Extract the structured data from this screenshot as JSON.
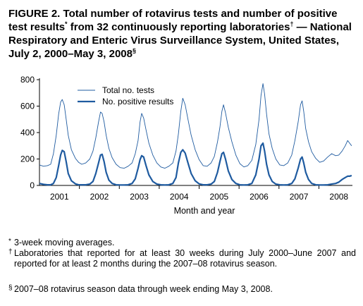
{
  "title": {
    "prefix": "FIGURE 2. ",
    "text1": "Total number of rotavirus tests and number of positive test results",
    "mark1": "*",
    "text2": " from 32 continuously reporting laboratories",
    "mark2": "†",
    "text3": " — National Respiratory and Enteric Virus Surveillance System, United States, July 2, 2000–May 3, 2008",
    "mark3": "§"
  },
  "chart_data": {
    "type": "line",
    "xlabel": "Month and year",
    "ylabel": "",
    "ylim": [
      0,
      800
    ],
    "yticks": [
      "0",
      "200",
      "400",
      "600",
      "800"
    ],
    "xlim": [
      2000.5,
      2008.34
    ],
    "xtick_years": [
      "2001",
      "2002",
      "2003",
      "2004",
      "2005",
      "2006",
      "2007",
      "2008"
    ],
    "grid": false,
    "legend_position": "top-left",
    "series": [
      {
        "name": "Total no. tests",
        "style": "thin",
        "x": [
          2000.5,
          2000.6,
          2000.7,
          2000.78,
          2000.85,
          2000.92,
          2000.98,
          2001.03,
          2001.07,
          2001.12,
          2001.17,
          2001.22,
          2001.3,
          2001.4,
          2001.48,
          2001.56,
          2001.66,
          2001.76,
          2001.84,
          2001.91,
          2001.98,
          2002.03,
          2002.07,
          2002.12,
          2002.17,
          2002.24,
          2002.32,
          2002.42,
          2002.52,
          2002.62,
          2002.72,
          2002.82,
          2002.9,
          2002.97,
          2003.02,
          2003.06,
          2003.11,
          2003.17,
          2003.24,
          2003.34,
          2003.44,
          2003.54,
          2003.64,
          2003.74,
          2003.84,
          2003.92,
          2003.98,
          2004.04,
          2004.09,
          2004.15,
          2004.22,
          2004.3,
          2004.4,
          2004.5,
          2004.6,
          2004.7,
          2004.8,
          2004.88,
          2004.96,
          2005.02,
          2005.07,
          2005.11,
          2005.16,
          2005.23,
          2005.32,
          2005.42,
          2005.52,
          2005.62,
          2005.72,
          2005.82,
          2005.92,
          2006.0,
          2006.05,
          2006.1,
          2006.14,
          2006.19,
          2006.25,
          2006.33,
          2006.42,
          2006.52,
          2006.62,
          2006.72,
          2006.82,
          2006.9,
          2006.98,
          2007.04,
          2007.08,
          2007.12,
          2007.17,
          2007.24,
          2007.32,
          2007.42,
          2007.52,
          2007.62,
          2007.72,
          2007.82,
          2007.92,
          2008.0,
          2008.08,
          2008.16,
          2008.22,
          2008.27,
          2008.32
        ],
        "values": [
          155,
          145,
          150,
          160,
          240,
          380,
          540,
          630,
          650,
          610,
          500,
          380,
          270,
          205,
          175,
          160,
          170,
          200,
          260,
          360,
          480,
          555,
          545,
          480,
          380,
          280,
          210,
          160,
          135,
          130,
          145,
          170,
          240,
          340,
          480,
          545,
          510,
          420,
          320,
          230,
          170,
          140,
          130,
          145,
          170,
          260,
          390,
          560,
          660,
          610,
          500,
          380,
          270,
          195,
          150,
          145,
          170,
          220,
          330,
          440,
          560,
          610,
          550,
          440,
          330,
          230,
          165,
          140,
          150,
          190,
          310,
          500,
          680,
          770,
          690,
          540,
          390,
          280,
          200,
          155,
          150,
          170,
          230,
          340,
          480,
          610,
          640,
          560,
          430,
          330,
          255,
          205,
          175,
          185,
          215,
          240,
          225,
          230,
          260,
          300,
          340,
          320,
          300
        ]
      },
      {
        "name": "No. positive results",
        "style": "thick",
        "x": [
          2000.5,
          2000.6,
          2000.7,
          2000.78,
          2000.85,
          2000.92,
          2000.98,
          2001.03,
          2001.07,
          2001.12,
          2001.17,
          2001.22,
          2001.3,
          2001.4,
          2001.48,
          2001.56,
          2001.66,
          2001.76,
          2001.84,
          2001.91,
          2001.98,
          2002.03,
          2002.07,
          2002.12,
          2002.17,
          2002.24,
          2002.32,
          2002.42,
          2002.52,
          2002.62,
          2002.72,
          2002.82,
          2002.9,
          2002.97,
          2003.02,
          2003.06,
          2003.11,
          2003.17,
          2003.24,
          2003.34,
          2003.44,
          2003.54,
          2003.64,
          2003.74,
          2003.84,
          2003.92,
          2003.98,
          2004.04,
          2004.09,
          2004.15,
          2004.22,
          2004.3,
          2004.4,
          2004.5,
          2004.6,
          2004.7,
          2004.8,
          2004.88,
          2004.96,
          2005.02,
          2005.07,
          2005.11,
          2005.16,
          2005.23,
          2005.32,
          2005.42,
          2005.52,
          2005.62,
          2005.72,
          2005.82,
          2005.92,
          2006.0,
          2006.05,
          2006.1,
          2006.14,
          2006.19,
          2006.25,
          2006.33,
          2006.42,
          2006.52,
          2006.62,
          2006.72,
          2006.82,
          2006.9,
          2006.98,
          2007.04,
          2007.08,
          2007.12,
          2007.17,
          2007.24,
          2007.32,
          2007.42,
          2007.52,
          2007.62,
          2007.72,
          2007.82,
          2007.92,
          2008.0,
          2008.08,
          2008.16,
          2008.22,
          2008.27,
          2008.32
        ],
        "values": [
          15,
          8,
          5,
          5,
          15,
          60,
          150,
          230,
          265,
          255,
          180,
          90,
          35,
          12,
          5,
          5,
          5,
          10,
          30,
          90,
          170,
          230,
          235,
          180,
          100,
          40,
          15,
          5,
          3,
          3,
          5,
          15,
          50,
          130,
          195,
          225,
          215,
          150,
          80,
          30,
          10,
          5,
          3,
          5,
          15,
          60,
          170,
          250,
          270,
          245,
          170,
          90,
          35,
          12,
          5,
          5,
          10,
          30,
          100,
          180,
          240,
          250,
          200,
          110,
          45,
          15,
          5,
          3,
          5,
          15,
          80,
          200,
          300,
          320,
          260,
          160,
          80,
          30,
          10,
          5,
          3,
          5,
          15,
          50,
          130,
          200,
          215,
          170,
          100,
          45,
          15,
          5,
          3,
          3,
          5,
          10,
          15,
          25,
          45,
          60,
          70,
          70,
          75
        ]
      }
    ]
  },
  "footnotes": [
    {
      "mark": "*",
      "text": "3-week moving averages."
    },
    {
      "mark": "†",
      "text": "Laboratories that reported for at least 30 weeks during July 2000–June 2007 and reported for at least 2 months during the 2007–08 rotavirus season."
    },
    {
      "mark": "§",
      "text": "2007–08 rotavirus season data through week ending May 3, 2008."
    }
  ],
  "colors": {
    "line": "#1f5ba0",
    "axis": "#000000"
  }
}
